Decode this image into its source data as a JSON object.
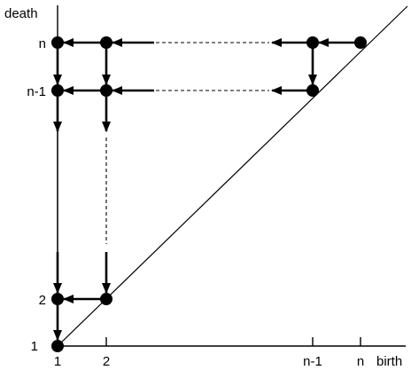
{
  "axes": {
    "y_label": "death",
    "x_label": "birth"
  },
  "ticks": {
    "x": [
      "1",
      "2",
      "n-1",
      "n"
    ],
    "y": [
      "1",
      "2",
      "n-1",
      "n"
    ]
  }
}
